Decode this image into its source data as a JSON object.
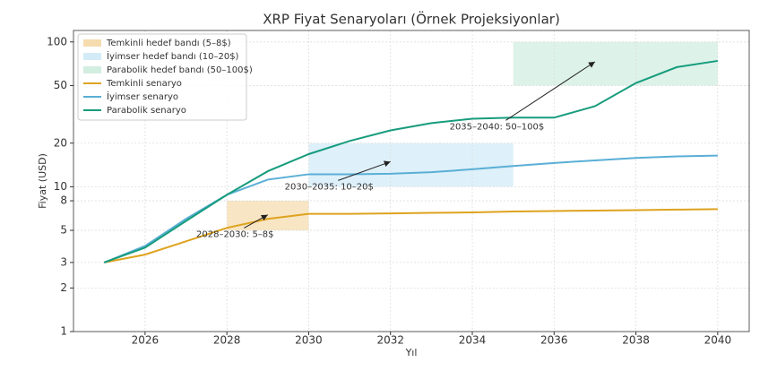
{
  "chart_data": {
    "type": "line",
    "title": "XRP Fiyat Senaryoları (Örnek Projeksiyonlar)",
    "x_label": "Yıl",
    "y_label": "Fiyat (USD)",
    "x": [
      2025,
      2026,
      2027,
      2028,
      2029,
      2030,
      2031,
      2032,
      2033,
      2034,
      2035,
      2036,
      2037,
      2038,
      2039,
      2040
    ],
    "series": [
      {
        "name": "Temkinli senaryo",
        "color": "#dea31f",
        "values": [
          3,
          3.4,
          4.2,
          5.2,
          6.0,
          6.5,
          6.5,
          6.55,
          6.6,
          6.65,
          6.75,
          6.8,
          6.85,
          6.9,
          6.95,
          7.0
        ]
      },
      {
        "name": "İyimser senaryo",
        "color": "#5aafd6",
        "values": [
          3,
          3.9,
          6.0,
          8.8,
          11.2,
          12.2,
          12.2,
          12.3,
          12.6,
          13.2,
          13.9,
          14.6,
          15.2,
          15.8,
          16.2,
          16.4
        ]
      },
      {
        "name": "Parabolik senaryo",
        "color": "#179c7d",
        "values": [
          3,
          3.8,
          5.8,
          8.8,
          12.8,
          16.8,
          20.7,
          24.5,
          27.5,
          29.5,
          30,
          30,
          36,
          52,
          67,
          74
        ]
      }
    ],
    "bands": [
      {
        "name": "Temkinli hedef bandı (5–8$)",
        "color": "#f5dcaf",
        "x": [
          2028,
          2030
        ],
        "y": [
          5,
          8
        ]
      },
      {
        "name": "İyimser hedef bandı (10–20$)",
        "color": "#d3ebf7",
        "x": [
          2030,
          2035
        ],
        "y": [
          10,
          20
        ]
      },
      {
        "name": "Parabolik hedef bandı (50–100$)",
        "color": "#d2eee1",
        "x": [
          2035,
          2040
        ],
        "y": [
          50,
          100
        ]
      }
    ],
    "annotations": [
      {
        "text": "2028–2030: 5–8$",
        "xy": [
          2029,
          6.4
        ],
        "xytext": [
          2028.2,
          4.7
        ]
      },
      {
        "text": "2030–2035: 10–20$",
        "xy": [
          2032,
          14.9
        ],
        "xytext": [
          2030.5,
          10
        ]
      },
      {
        "text": "2035–2040: 50–100$",
        "xy": [
          2037,
          73
        ],
        "xytext": [
          2034.6,
          26
        ]
      }
    ],
    "xlim": [
      2024.25,
      2040.77
    ],
    "ylim": [
      1,
      120
    ],
    "log_y": true,
    "xticks": [
      2026,
      2028,
      2030,
      2032,
      2034,
      2036,
      2038,
      2040
    ],
    "yticks": [
      1,
      2,
      3,
      5,
      8,
      10,
      20,
      50,
      100
    ],
    "grid": true,
    "legend": "upper left"
  }
}
